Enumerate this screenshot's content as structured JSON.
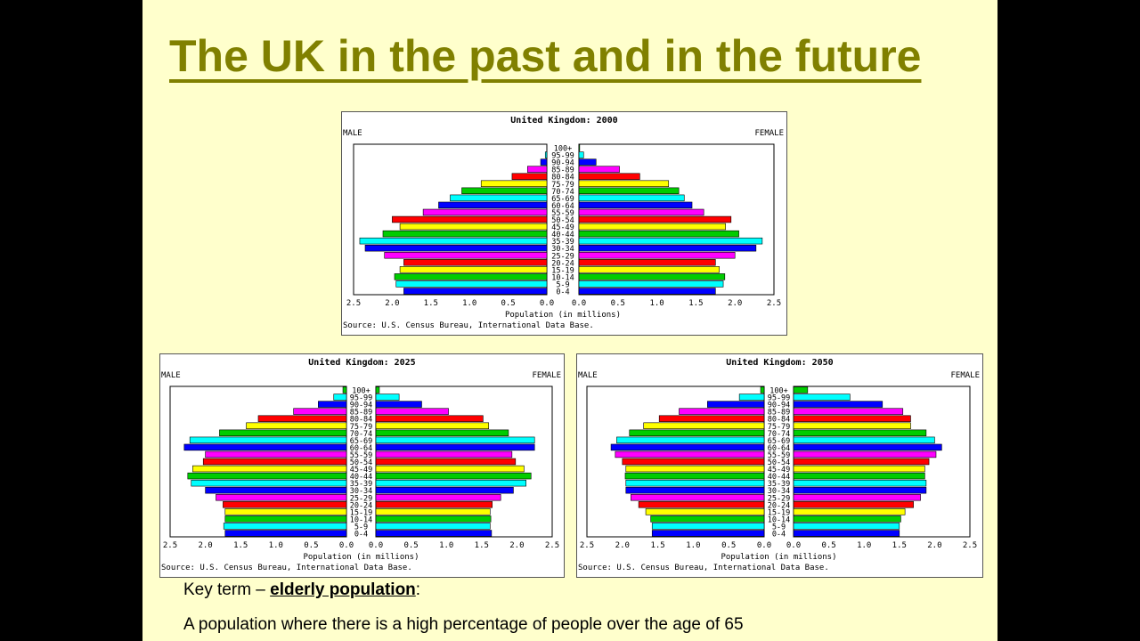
{
  "slide": {
    "title": "The UK in the past and in the future",
    "key_term_prefix": "Key term – ",
    "key_term": "elderly population",
    "key_term_suffix": ":",
    "definition": "A population where there is a high percentage of people over the age of 65"
  },
  "colors": {
    "title": "#808000",
    "bar_cycle": [
      "#0000ff",
      "#00ffff",
      "#00cc00",
      "#ffff00",
      "#ff0000",
      "#ff00ff"
    ]
  },
  "chart_data": [
    {
      "type": "bar",
      "orientation": "horizontal-pyramid",
      "title": "United Kingdom: 2000",
      "left_label": "MALE",
      "right_label": "FEMALE",
      "xlabel": "Population (in millions)",
      "source": "Source: U.S. Census Bureau, International Data Base.",
      "xlim": [
        0,
        2.5
      ],
      "ticks_left": [
        "2.5",
        "2.0",
        "1.5",
        "1.0",
        "0.5",
        "0.0"
      ],
      "ticks_right": [
        "0.0",
        "0.5",
        "1.0",
        "1.5",
        "2.0",
        "2.5"
      ],
      "categories": [
        "0-4",
        "5-9",
        "10-14",
        "15-19",
        "20-24",
        "25-29",
        "30-34",
        "35-39",
        "40-44",
        "45-49",
        "50-54",
        "55-59",
        "60-64",
        "65-69",
        "70-74",
        "75-79",
        "80-84",
        "85-89",
        "90-94",
        "95-99",
        "100+"
      ],
      "series": [
        {
          "name": "MALE",
          "values": [
            1.85,
            1.95,
            1.97,
            1.9,
            1.85,
            2.1,
            2.35,
            2.42,
            2.12,
            1.9,
            2.0,
            1.6,
            1.4,
            1.25,
            1.1,
            0.85,
            0.45,
            0.25,
            0.08,
            0.02,
            0.0
          ]
        },
        {
          "name": "FEMALE",
          "values": [
            1.75,
            1.85,
            1.87,
            1.8,
            1.75,
            2.0,
            2.27,
            2.35,
            2.05,
            1.88,
            1.95,
            1.6,
            1.45,
            1.35,
            1.28,
            1.15,
            0.78,
            0.52,
            0.22,
            0.06,
            0.01
          ]
        }
      ]
    },
    {
      "type": "bar",
      "orientation": "horizontal-pyramid",
      "title": "United Kingdom: 2025",
      "left_label": "MALE",
      "right_label": "FEMALE",
      "xlabel": "Population (in millions)",
      "source": "Source: U.S. Census Bureau, International Data Base.",
      "xlim": [
        0,
        2.5
      ],
      "ticks_left": [
        "2.5",
        "2.0",
        "1.5",
        "1.0",
        "0.5",
        "0.0"
      ],
      "ticks_right": [
        "0.0",
        "0.5",
        "1.0",
        "1.5",
        "2.0",
        "2.5"
      ],
      "categories": [
        "0-4",
        "5-9",
        "10-14",
        "15-19",
        "20-24",
        "25-29",
        "30-34",
        "35-39",
        "40-44",
        "45-49",
        "50-54",
        "55-59",
        "60-64",
        "65-69",
        "70-74",
        "75-79",
        "80-84",
        "85-89",
        "90-94",
        "95-99",
        "100+"
      ],
      "series": [
        {
          "name": "MALE",
          "values": [
            1.72,
            1.74,
            1.72,
            1.72,
            1.75,
            1.85,
            2.0,
            2.2,
            2.25,
            2.18,
            2.03,
            2.0,
            2.3,
            2.22,
            1.8,
            1.42,
            1.25,
            0.75,
            0.4,
            0.18,
            0.05
          ]
        },
        {
          "name": "FEMALE",
          "values": [
            1.64,
            1.62,
            1.63,
            1.62,
            1.65,
            1.77,
            1.95,
            2.13,
            2.2,
            2.1,
            1.98,
            1.93,
            2.25,
            2.25,
            1.88,
            1.6,
            1.52,
            1.03,
            0.65,
            0.33,
            0.05
          ]
        }
      ]
    },
    {
      "type": "bar",
      "orientation": "horizontal-pyramid",
      "title": "United Kingdom: 2050",
      "left_label": "MALE",
      "right_label": "FEMALE",
      "xlabel": "Population (in millions)",
      "source": "Source: U.S. Census Bureau, International Data Base.",
      "xlim": [
        0,
        2.5
      ],
      "ticks_left": [
        "2.5",
        "2.0",
        "1.5",
        "1.0",
        "0.5",
        "0.0"
      ],
      "ticks_right": [
        "0.0",
        "0.5",
        "1.0",
        "1.5",
        "2.0",
        "2.5"
      ],
      "categories": [
        "0-4",
        "5-9",
        "10-14",
        "15-19",
        "20-24",
        "25-29",
        "30-34",
        "35-39",
        "40-44",
        "45-49",
        "50-54",
        "55-59",
        "60-64",
        "65-69",
        "70-74",
        "75-79",
        "80-84",
        "85-89",
        "90-94",
        "95-99",
        "100+"
      ],
      "series": [
        {
          "name": "MALE",
          "values": [
            1.58,
            1.58,
            1.6,
            1.67,
            1.77,
            1.88,
            1.95,
            1.95,
            1.96,
            1.95,
            2.0,
            2.1,
            2.16,
            2.08,
            1.9,
            1.7,
            1.48,
            1.2,
            0.8,
            0.35,
            0.05
          ]
        },
        {
          "name": "FEMALE",
          "values": [
            1.5,
            1.5,
            1.52,
            1.58,
            1.7,
            1.8,
            1.88,
            1.88,
            1.86,
            1.86,
            1.92,
            2.02,
            2.1,
            2.0,
            1.88,
            1.66,
            1.66,
            1.55,
            1.26,
            0.8,
            0.2
          ]
        }
      ]
    }
  ]
}
